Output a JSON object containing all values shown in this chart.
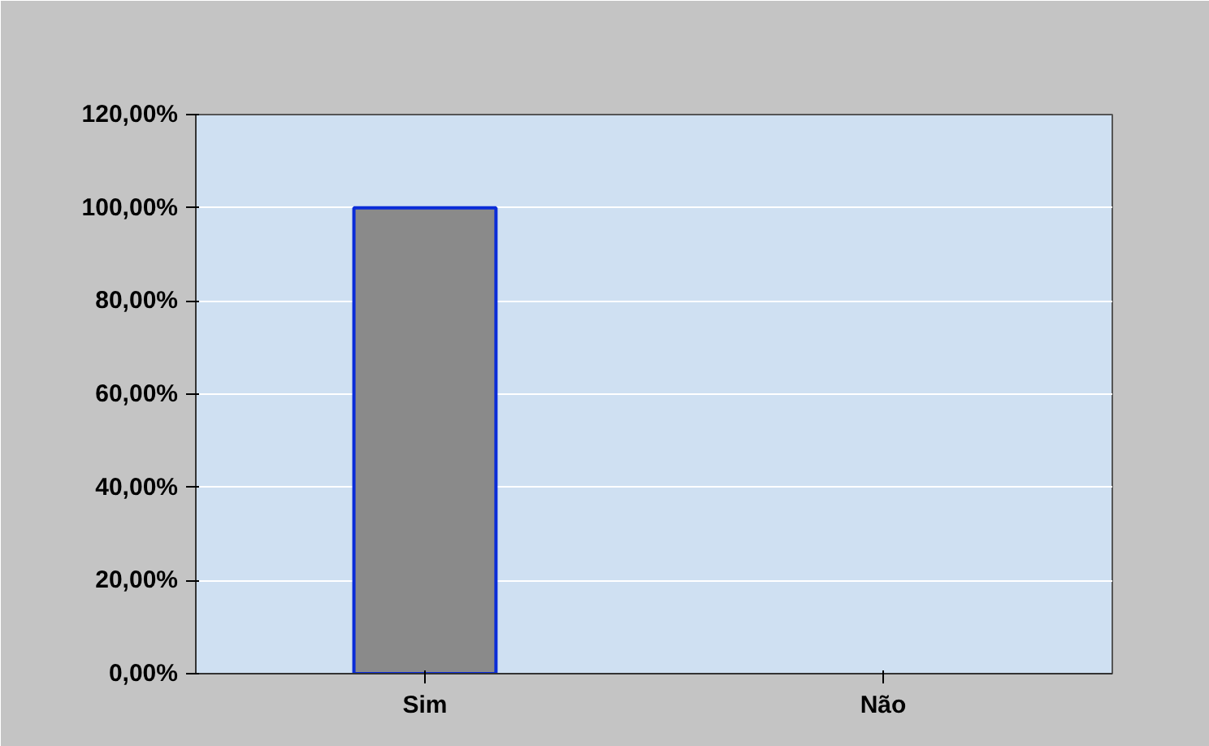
{
  "chart_data": {
    "type": "bar",
    "categories": [
      "Sim",
      "Não"
    ],
    "values": [
      100,
      0
    ],
    "color": "#8a8a8a",
    "ylim": [
      0,
      120
    ],
    "yticks": [
      {
        "value": 0,
        "label": "0,00%"
      },
      {
        "value": 20,
        "label": "20,00%"
      },
      {
        "value": 40,
        "label": "40,00%"
      },
      {
        "value": 60,
        "label": "60,00%"
      },
      {
        "value": 80,
        "label": "80,00%"
      },
      {
        "value": 100,
        "label": "100,00%"
      },
      {
        "value": 120,
        "label": "120,00%"
      }
    ],
    "grid": "y"
  }
}
